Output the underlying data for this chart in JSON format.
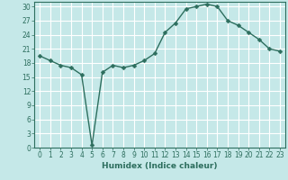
{
  "x": [
    0,
    1,
    2,
    3,
    4,
    5,
    6,
    7,
    8,
    9,
    10,
    11,
    12,
    13,
    14,
    15,
    16,
    17,
    18,
    19,
    20,
    21,
    22,
    23
  ],
  "y": [
    19.5,
    18.5,
    17.5,
    17.0,
    15.5,
    0.5,
    16.0,
    17.5,
    17.0,
    17.5,
    18.5,
    20.0,
    24.5,
    26.5,
    29.5,
    30.0,
    30.5,
    30.0,
    27.0,
    26.0,
    24.5,
    23.0,
    21.0,
    20.5
  ],
  "line_color": "#2d6e5e",
  "marker": "D",
  "marker_size": 2.5,
  "bg_color": "#c5e8e8",
  "grid_color": "#ffffff",
  "xlabel": "Humidex (Indice chaleur)",
  "xlim": [
    -0.5,
    23.5
  ],
  "ylim": [
    0,
    31
  ],
  "yticks": [
    0,
    3,
    6,
    9,
    12,
    15,
    18,
    21,
    24,
    27,
    30
  ],
  "xticks": [
    0,
    1,
    2,
    3,
    4,
    5,
    6,
    7,
    8,
    9,
    10,
    11,
    12,
    13,
    14,
    15,
    16,
    17,
    18,
    19,
    20,
    21,
    22,
    23
  ],
  "tick_fontsize": 5.5,
  "xlabel_fontsize": 6.5,
  "line_width": 1.0
}
